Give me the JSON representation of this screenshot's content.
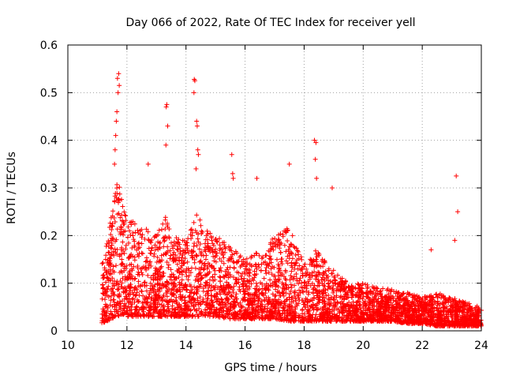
{
  "chart_data": {
    "type": "scatter",
    "title": "Day 066 of 2022, Rate Of TEC Index for receiver yell",
    "xlabel": "GPS time / hours",
    "ylabel": "ROTI / TECUs",
    "xlim": [
      10,
      24
    ],
    "ylim": [
      0,
      0.6
    ],
    "x_ticks": [
      10,
      12,
      14,
      16,
      18,
      20,
      22,
      24
    ],
    "x_tick_labels": [
      "10",
      "12",
      "14",
      "16",
      "18",
      "20",
      "22",
      "24"
    ],
    "y_ticks": [
      0,
      0.1,
      0.2,
      0.3,
      0.4,
      0.5,
      0.6
    ],
    "y_tick_labels": [
      "0",
      "0.1",
      "0.2",
      "0.3",
      "0.4",
      "0.5",
      "0.6"
    ],
    "grid": true,
    "marker": "+",
    "color": "#ff0000",
    "series": [
      {
        "name": "ROTI",
        "envelope": {
          "x": [
            11.15,
            11.3,
            11.5,
            11.6,
            11.7,
            11.8,
            12.0,
            12.5,
            13.0,
            13.3,
            13.5,
            14.0,
            14.3,
            14.6,
            15.0,
            15.5,
            16.0,
            16.5,
            17.0,
            17.5,
            18.0,
            18.4,
            18.8,
            19.5,
            20.0,
            20.5,
            21.0,
            21.5,
            22.0,
            22.5,
            23.0,
            23.5,
            24.0
          ],
          "typical_max": [
            0.14,
            0.18,
            0.25,
            0.3,
            0.32,
            0.28,
            0.24,
            0.22,
            0.2,
            0.24,
            0.2,
            0.19,
            0.25,
            0.22,
            0.2,
            0.18,
            0.15,
            0.17,
            0.2,
            0.22,
            0.14,
            0.17,
            0.14,
            0.1,
            0.1,
            0.09,
            0.09,
            0.08,
            0.07,
            0.08,
            0.07,
            0.06,
            0.05
          ],
          "typical_min": [
            0.015,
            0.02,
            0.025,
            0.03,
            0.03,
            0.035,
            0.03,
            0.03,
            0.03,
            0.03,
            0.03,
            0.03,
            0.03,
            0.03,
            0.03,
            0.025,
            0.025,
            0.025,
            0.025,
            0.02,
            0.02,
            0.02,
            0.02,
            0.02,
            0.02,
            0.02,
            0.02,
            0.015,
            0.015,
            0.01,
            0.01,
            0.01,
            0.01
          ]
        },
        "peaks": [
          {
            "x": 11.72,
            "y": 0.54
          },
          {
            "x": 11.68,
            "y": 0.53
          },
          {
            "x": 11.74,
            "y": 0.515
          },
          {
            "x": 11.7,
            "y": 0.5
          },
          {
            "x": 11.66,
            "y": 0.46
          },
          {
            "x": 11.64,
            "y": 0.44
          },
          {
            "x": 11.62,
            "y": 0.41
          },
          {
            "x": 11.6,
            "y": 0.38
          },
          {
            "x": 11.58,
            "y": 0.35
          },
          {
            "x": 12.72,
            "y": 0.35
          },
          {
            "x": 13.35,
            "y": 0.475
          },
          {
            "x": 13.33,
            "y": 0.47
          },
          {
            "x": 13.38,
            "y": 0.43
          },
          {
            "x": 13.32,
            "y": 0.39
          },
          {
            "x": 14.28,
            "y": 0.528
          },
          {
            "x": 14.3,
            "y": 0.525
          },
          {
            "x": 14.27,
            "y": 0.5
          },
          {
            "x": 14.36,
            "y": 0.44
          },
          {
            "x": 14.38,
            "y": 0.43
          },
          {
            "x": 14.4,
            "y": 0.38
          },
          {
            "x": 14.42,
            "y": 0.37
          },
          {
            "x": 14.34,
            "y": 0.34
          },
          {
            "x": 15.55,
            "y": 0.37
          },
          {
            "x": 15.58,
            "y": 0.33
          },
          {
            "x": 15.6,
            "y": 0.32
          },
          {
            "x": 16.4,
            "y": 0.32
          },
          {
            "x": 17.5,
            "y": 0.35
          },
          {
            "x": 18.35,
            "y": 0.4
          },
          {
            "x": 18.4,
            "y": 0.395
          },
          {
            "x": 18.38,
            "y": 0.36
          },
          {
            "x": 18.42,
            "y": 0.32
          },
          {
            "x": 18.95,
            "y": 0.3
          },
          {
            "x": 23.15,
            "y": 0.325
          },
          {
            "x": 23.2,
            "y": 0.25
          },
          {
            "x": 23.1,
            "y": 0.19
          },
          {
            "x": 22.3,
            "y": 0.17
          }
        ]
      }
    ]
  }
}
